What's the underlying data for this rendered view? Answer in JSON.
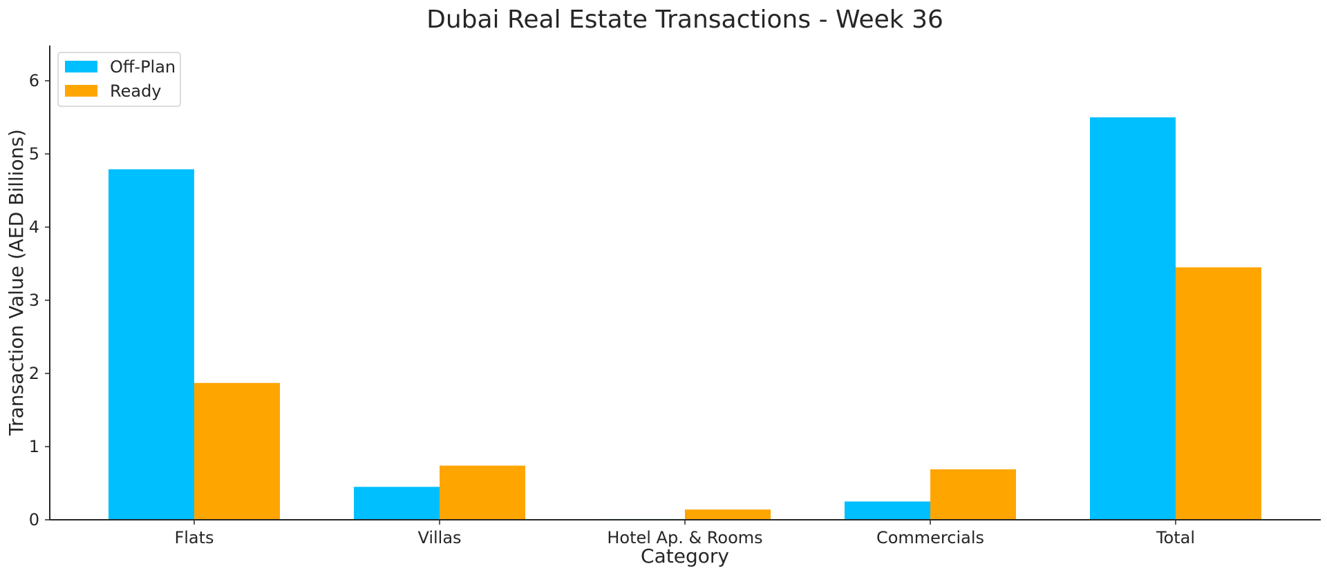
{
  "chart_data": {
    "type": "bar",
    "title": "Dubai Real Estate Transactions - Week 36",
    "xlabel": "Category",
    "ylabel": "Transaction Value (AED Billions)",
    "categories": [
      "Flats",
      "Villas",
      "Hotel Ap. & Rooms",
      "Commercials",
      "Total"
    ],
    "series": [
      {
        "name": "Off-Plan",
        "color": "#00bfff",
        "values": [
          4.79,
          0.45,
          0.01,
          0.25,
          5.5
        ]
      },
      {
        "name": "Ready",
        "color": "#ffa500",
        "values": [
          1.87,
          0.74,
          0.14,
          0.69,
          3.45
        ]
      }
    ],
    "ylim": [
      0,
      6.5
    ],
    "yticks": [
      0,
      1,
      2,
      3,
      4,
      5,
      6
    ],
    "grid": false,
    "legend_position": "top-left"
  }
}
